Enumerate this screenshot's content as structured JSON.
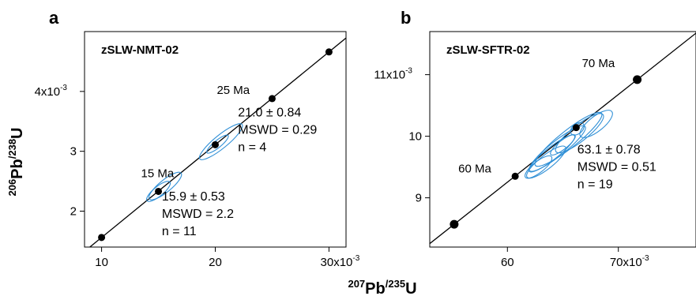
{
  "figure": {
    "ylabel": {
      "base": "Pb",
      "sup_top": "206",
      "sup_bottom": "238",
      "sep": "/",
      "u": "U"
    },
    "xlabel": {
      "base": "Pb",
      "sup_top": "207",
      "sup_bottom": "235",
      "sep": "/",
      "u": "U"
    },
    "concordia_color": "#000000",
    "ellipse_color": "#2f8fd6"
  },
  "chart_data": [
    {
      "type": "scatter",
      "panel_label": "a",
      "sample": "zSLW-NMT-02",
      "xlim": [
        8.5,
        31.5
      ],
      "ylim": [
        1.4,
        5.0
      ],
      "xticks": [
        {
          "v": 10,
          "label": "10"
        },
        {
          "v": 20,
          "label": "20"
        },
        {
          "v": 30,
          "label": "30x10",
          "exp": "-3"
        }
      ],
      "yticks": [
        {
          "v": 2,
          "label": "2"
        },
        {
          "v": 3,
          "label": "3"
        },
        {
          "v": 4,
          "label": "4x10",
          "exp": "-3"
        }
      ],
      "concordia_points": [
        {
          "x": 10.0,
          "y": 1.56,
          "label": ""
        },
        {
          "x": 15.0,
          "y": 2.33,
          "label": "15 Ma"
        },
        {
          "x": 20.0,
          "y": 3.11,
          "label": ""
        },
        {
          "x": 25.0,
          "y": 3.88,
          "label": "25 Ma"
        },
        {
          "x": 30.0,
          "y": 4.66,
          "label": ""
        }
      ],
      "ellipses": [
        {
          "cx": 15.0,
          "cy": 2.33,
          "rx": 1.3,
          "ry": 0.08,
          "rot": 8
        },
        {
          "cx": 15.6,
          "cy": 2.42,
          "rx": 1.8,
          "ry": 0.1,
          "rot": 9
        },
        {
          "cx": 20.5,
          "cy": 3.16,
          "rx": 2.4,
          "ry": 0.11,
          "rot": 10
        },
        {
          "cx": 20.2,
          "cy": 3.12,
          "rx": 1.2,
          "ry": 0.06,
          "rot": 8
        }
      ],
      "results": [
        {
          "lines": [
            "21.0 ± 0.84",
            "MSWD = 0.29",
            "n = 4"
          ],
          "x": 22.0,
          "y": 3.58
        },
        {
          "lines": [
            "15.9 ± 0.53",
            "MSWD = 2.2",
            "n = 11"
          ],
          "x": 15.3,
          "y": 2.18
        }
      ]
    },
    {
      "type": "scatter",
      "panel_label": "b",
      "sample": "zSLW-SFTR-02",
      "xlim": [
        53.0,
        77.0
      ],
      "ylim": [
        8.2,
        11.7
      ],
      "xticks": [
        {
          "v": 60,
          "label": "60"
        },
        {
          "v": 70,
          "label": "70x10",
          "exp": "-3"
        }
      ],
      "yticks": [
        {
          "v": 9,
          "label": "9"
        },
        {
          "v": 10,
          "label": "10"
        },
        {
          "v": 11,
          "label": "11x10",
          "exp": "-3"
        }
      ],
      "concordia_points": [
        {
          "x": 55.2,
          "y": 8.57,
          "label": ""
        },
        {
          "x": 60.7,
          "y": 9.35,
          "label": "60 Ma"
        },
        {
          "x": 66.2,
          "y": 10.14,
          "label": ""
        },
        {
          "x": 71.7,
          "y": 10.92,
          "label": "70 Ma"
        }
      ],
      "ellipses": [
        {
          "cx": 64.5,
          "cy": 9.8,
          "rx": 3.2,
          "ry": 0.12,
          "rot": 10
        },
        {
          "cx": 65.5,
          "cy": 9.95,
          "rx": 3.8,
          "ry": 0.14,
          "rot": 11
        },
        {
          "cx": 64.0,
          "cy": 9.72,
          "rx": 2.6,
          "ry": 0.1,
          "rot": 10
        },
        {
          "cx": 66.5,
          "cy": 10.05,
          "rx": 2.7,
          "ry": 0.13,
          "rot": 12
        },
        {
          "cx": 68.0,
          "cy": 10.2,
          "rx": 1.8,
          "ry": 0.12,
          "rot": 12
        },
        {
          "cx": 63.5,
          "cy": 9.58,
          "rx": 2.2,
          "ry": 0.11,
          "rot": 9
        },
        {
          "cx": 65.0,
          "cy": 9.86,
          "rx": 1.4,
          "ry": 0.07,
          "rot": 10
        },
        {
          "cx": 62.8,
          "cy": 9.5,
          "rx": 1.5,
          "ry": 0.09,
          "rot": 9
        },
        {
          "cx": 66.3,
          "cy": 10.12,
          "rx": 0.7,
          "ry": 0.08,
          "rot": 30
        }
      ],
      "results": [
        {
          "lines": [
            "63.1 ± 0.78",
            "MSWD = 0.51",
            "n = 19"
          ],
          "x": 66.3,
          "y": 9.72
        }
      ]
    }
  ]
}
